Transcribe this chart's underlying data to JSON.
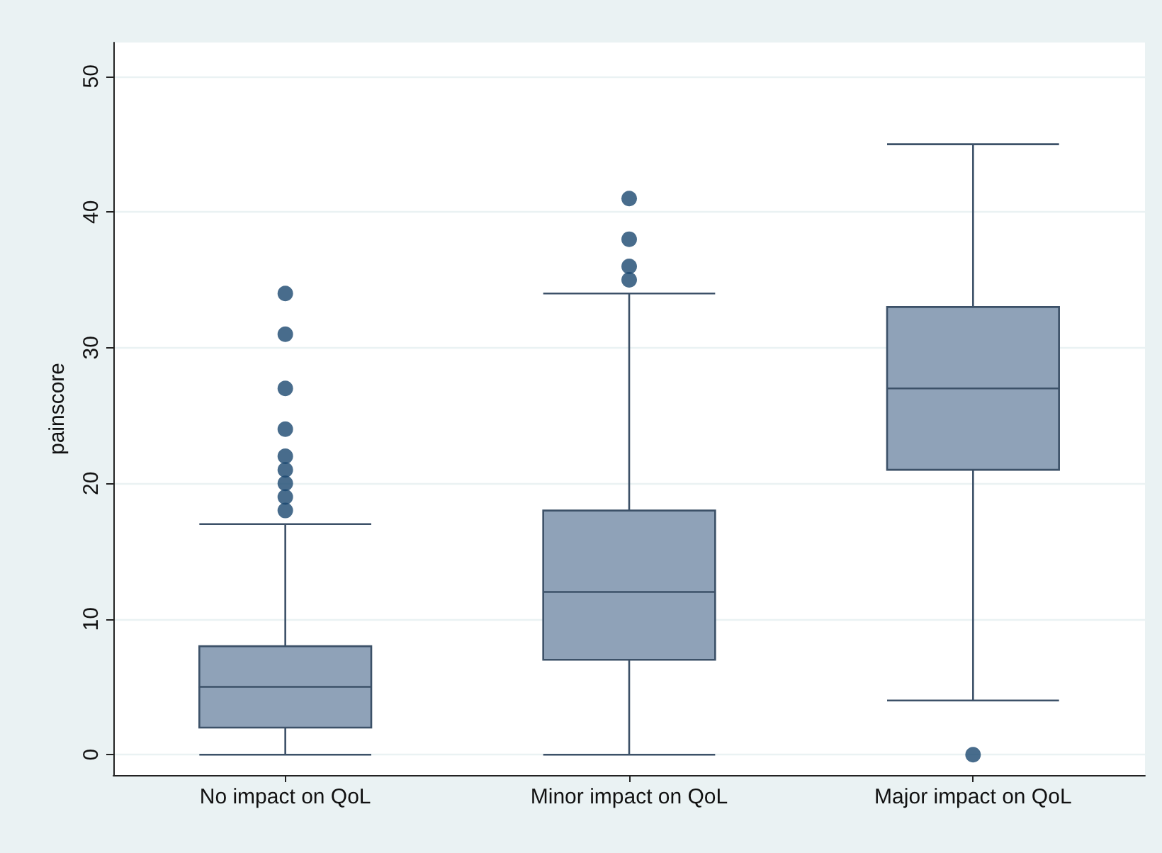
{
  "chart_data": {
    "type": "box",
    "ylabel": "painscore",
    "categories": [
      "No impact on QoL",
      "Minor impact on QoL",
      "Major impact on QoL"
    ],
    "ylim": [
      -1.5,
      52.5
    ],
    "yticks": [
      0,
      10,
      20,
      30,
      40,
      50
    ],
    "grid": "y",
    "series": [
      {
        "color": "#8fa2b8",
        "boxes": [
          {
            "low": 0,
            "q1": 2,
            "median": 5,
            "q3": 8,
            "high": 17,
            "outliers": [
              18,
              19,
              20,
              21,
              22,
              24,
              27,
              31,
              34
            ]
          },
          {
            "low": 0,
            "q1": 7,
            "median": 12,
            "q3": 18,
            "high": 34,
            "outliers": [
              35,
              36,
              38,
              41
            ]
          },
          {
            "low": 4,
            "q1": 21,
            "median": 27,
            "q3": 33,
            "high": 45,
            "outliers": [
              0
            ]
          }
        ]
      }
    ]
  }
}
